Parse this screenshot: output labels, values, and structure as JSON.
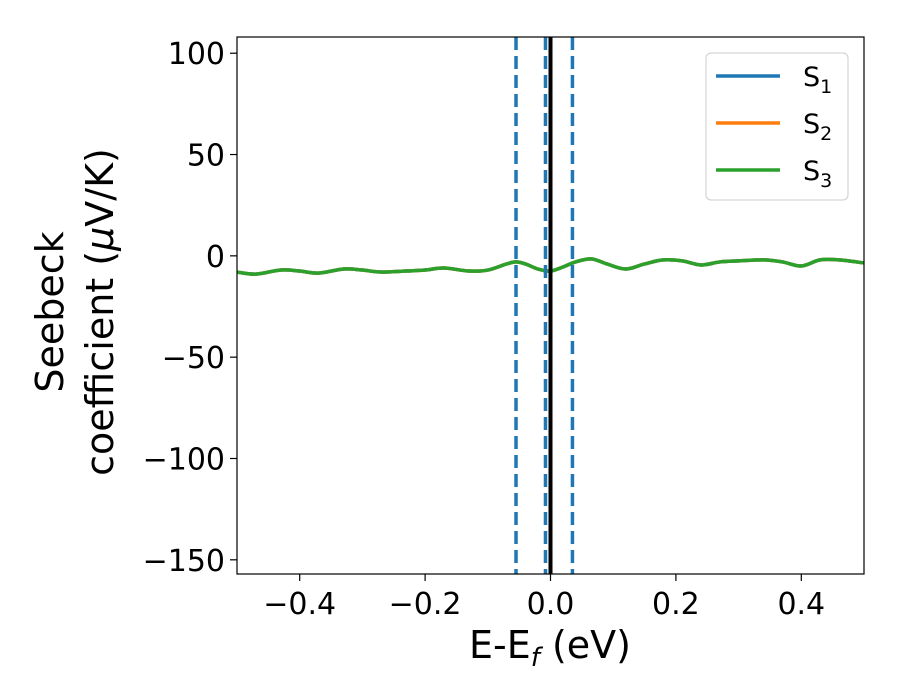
{
  "chart_data": {
    "type": "line",
    "title": "",
    "xlabel": {
      "main": "E-E",
      "sub": "f",
      "tail": " (eV)"
    },
    "ylabel": {
      "line1": "Seebeck",
      "line2_prefix": "coefficient  (",
      "line2_mu": "μ",
      "line2_suffix": "V/K)"
    },
    "xlim": [
      -0.5,
      0.5
    ],
    "ylim": [
      -157,
      108
    ],
    "xticks": [
      {
        "value": -0.4,
        "label": "−0.4"
      },
      {
        "value": -0.2,
        "label": "−0.2"
      },
      {
        "value": 0.0,
        "label": "0.0"
      },
      {
        "value": 0.2,
        "label": "0.2"
      },
      {
        "value": 0.4,
        "label": "0.4"
      }
    ],
    "yticks": [
      {
        "value": 100,
        "label": "100"
      },
      {
        "value": 50,
        "label": "50"
      },
      {
        "value": 0,
        "label": "0"
      },
      {
        "value": -50,
        "label": "−50"
      },
      {
        "value": -100,
        "label": "−100"
      },
      {
        "value": -150,
        "label": "−150"
      }
    ],
    "grid": false,
    "legend_position": "top-right",
    "series": [
      {
        "name": "S",
        "sub": "1",
        "color": "#1f77b4",
        "x": [
          -0.5,
          -0.47,
          -0.43,
          -0.4,
          -0.37,
          -0.33,
          -0.3,
          -0.27,
          -0.23,
          -0.2,
          -0.17,
          -0.13,
          -0.1,
          -0.07,
          -0.055,
          -0.04,
          -0.02,
          0.0,
          0.02,
          0.04,
          0.065,
          0.09,
          0.12,
          0.15,
          0.18,
          0.21,
          0.24,
          0.27,
          0.3,
          0.34,
          0.37,
          0.4,
          0.43,
          0.46,
          0.5
        ],
        "y": [
          -8,
          -9,
          -7,
          -7.5,
          -8.5,
          -6.5,
          -7,
          -8,
          -7.5,
          -7,
          -6,
          -7.5,
          -7,
          -4,
          -3,
          -4,
          -6.5,
          -7.5,
          -5.5,
          -3,
          -1.5,
          -4,
          -6.5,
          -4,
          -2,
          -2.5,
          -4.5,
          -3,
          -2.5,
          -2,
          -3,
          -5,
          -2,
          -2,
          -3.5
        ]
      },
      {
        "name": "S",
        "sub": "2",
        "color": "#ff7f0e",
        "x": [
          -0.5,
          -0.47,
          -0.43,
          -0.4,
          -0.37,
          -0.33,
          -0.3,
          -0.27,
          -0.23,
          -0.2,
          -0.17,
          -0.13,
          -0.1,
          -0.07,
          -0.055,
          -0.04,
          -0.02,
          0.0,
          0.02,
          0.04,
          0.065,
          0.09,
          0.12,
          0.15,
          0.18,
          0.21,
          0.24,
          0.27,
          0.3,
          0.34,
          0.37,
          0.4,
          0.43,
          0.46,
          0.5
        ],
        "y": [
          -8,
          -9,
          -7,
          -7.5,
          -8.5,
          -6.5,
          -7,
          -8,
          -7.5,
          -7,
          -6,
          -7.5,
          -7,
          -4,
          -3,
          -4,
          -6.5,
          -7.5,
          -5.5,
          -3,
          -1.5,
          -4,
          -6.5,
          -4,
          -2,
          -2.5,
          -4.5,
          -3,
          -2.5,
          -2,
          -3,
          -5,
          -2,
          -2,
          -3.5
        ]
      },
      {
        "name": "S",
        "sub": "3",
        "color": "#2ca02c",
        "x": [
          -0.5,
          -0.47,
          -0.43,
          -0.4,
          -0.37,
          -0.33,
          -0.3,
          -0.27,
          -0.23,
          -0.2,
          -0.17,
          -0.13,
          -0.1,
          -0.07,
          -0.055,
          -0.04,
          -0.02,
          0.0,
          0.02,
          0.04,
          0.065,
          0.09,
          0.12,
          0.15,
          0.18,
          0.21,
          0.24,
          0.27,
          0.3,
          0.34,
          0.37,
          0.4,
          0.43,
          0.46,
          0.5
        ],
        "y": [
          -8,
          -9,
          -7,
          -7.5,
          -8.5,
          -6.5,
          -7,
          -8,
          -7.5,
          -7,
          -6,
          -7.5,
          -7,
          -4,
          -3,
          -4,
          -6.5,
          -7.5,
          -5.5,
          -3,
          -1.5,
          -4,
          -6.5,
          -4,
          -2,
          -2.5,
          -4.5,
          -3,
          -2.5,
          -2,
          -3,
          -5,
          -2,
          -2,
          -3.5
        ]
      }
    ],
    "vlines": [
      {
        "x": -0.055,
        "style": "dashed",
        "color": "#1f77b4"
      },
      {
        "x": -0.008,
        "style": "dashed",
        "color": "#1f77b4"
      },
      {
        "x": 0.0,
        "style": "solid",
        "color": "#000000"
      },
      {
        "x": 0.035,
        "style": "dashed",
        "color": "#1f77b4"
      }
    ]
  }
}
